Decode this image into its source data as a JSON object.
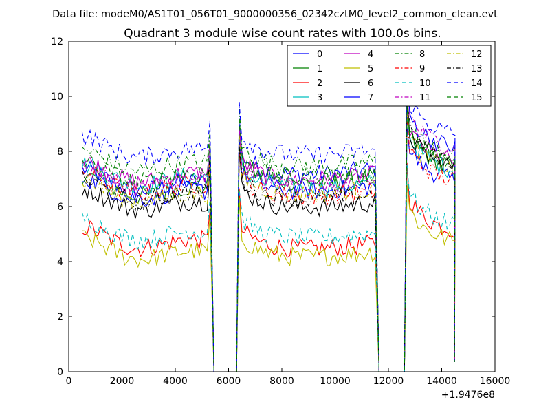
{
  "chart_data": {
    "type": "line",
    "suptitle": "Data file: modeM0/AS1T01_056T01_9000000356_02342cztM0_level2_common_clean.evt",
    "title": "Quadrant 3 module wise count rates with 100.0s bins.",
    "xlabel": "",
    "ylabel": "",
    "x_offset_label": "+1.9476e8",
    "xlim": [
      0,
      16000
    ],
    "ylim": [
      0,
      12
    ],
    "xticks": [
      0,
      2000,
      4000,
      6000,
      8000,
      10000,
      12000,
      14000,
      16000
    ],
    "yticks": [
      0,
      2,
      4,
      6,
      8,
      10,
      12
    ],
    "x_tick_labels": [
      "0",
      "2000",
      "4000",
      "6000",
      "8000",
      "10000",
      "12000",
      "14000",
      "16000"
    ],
    "y_tick_labels": [
      "0",
      "2",
      "4",
      "6",
      "8",
      "10",
      "12"
    ],
    "grid": false,
    "legend": {
      "position": "top-right",
      "columns": 4
    },
    "segments": [
      {
        "start": 500,
        "end": 5300
      },
      {
        "start": 6400,
        "end": 11500
      },
      {
        "start": 12700,
        "end": 14450
      }
    ],
    "gaps": [
      [
        5450,
        6300
      ],
      [
        11600,
        12600
      ]
    ],
    "series": [
      {
        "name": "0",
        "color": "#0000ff",
        "dash": "solid",
        "levels": [
          6.6,
          7.2,
          7.4
        ]
      },
      {
        "name": "1",
        "color": "#008000",
        "dash": "solid",
        "levels": [
          6.4,
          6.9,
          7.9
        ]
      },
      {
        "name": "2",
        "color": "#ff0000",
        "dash": "solid",
        "levels": [
          4.5,
          4.5,
          5.6
        ]
      },
      {
        "name": "3",
        "color": "#00bfbf",
        "dash": "solid",
        "levels": [
          6.8,
          6.7,
          7.8
        ]
      },
      {
        "name": "4",
        "color": "#bf00bf",
        "dash": "solid",
        "levels": [
          6.9,
          7.0,
          8.1
        ]
      },
      {
        "name": "5",
        "color": "#bfbf00",
        "dash": "solid",
        "levels": [
          4.1,
          4.2,
          5.2
        ]
      },
      {
        "name": "6",
        "color": "#000000",
        "dash": "solid",
        "levels": [
          5.9,
          6.0,
          7.9
        ]
      },
      {
        "name": "7",
        "color": "#0000ff",
        "dash": "solid",
        "levels": [
          6.3,
          6.6,
          8.6
        ]
      },
      {
        "name": "8",
        "color": "#008000",
        "dash": "dashdot",
        "levels": [
          7.3,
          7.5,
          8.3
        ]
      },
      {
        "name": "9",
        "color": "#ff0000",
        "dash": "dashdot",
        "levels": [
          6.5,
          6.4,
          7.4
        ]
      },
      {
        "name": "10",
        "color": "#00bfbf",
        "dash": "dashed",
        "levels": [
          4.8,
          4.9,
          5.8
        ]
      },
      {
        "name": "11",
        "color": "#bf00bf",
        "dash": "dashdot",
        "levels": [
          6.7,
          6.8,
          8.6
        ]
      },
      {
        "name": "12",
        "color": "#bfbf00",
        "dash": "dashdot",
        "levels": [
          6.2,
          6.5,
          7.8
        ]
      },
      {
        "name": "13",
        "color": "#000000",
        "dash": "dashdot",
        "levels": [
          6.2,
          6.3,
          8.1
        ]
      },
      {
        "name": "14",
        "color": "#0000ff",
        "dash": "dashed",
        "levels": [
          7.8,
          7.9,
          9.1
        ]
      },
      {
        "name": "15",
        "color": "#008000",
        "dash": "dashed",
        "levels": [
          6.9,
          7.1,
          8.0
        ]
      }
    ]
  }
}
